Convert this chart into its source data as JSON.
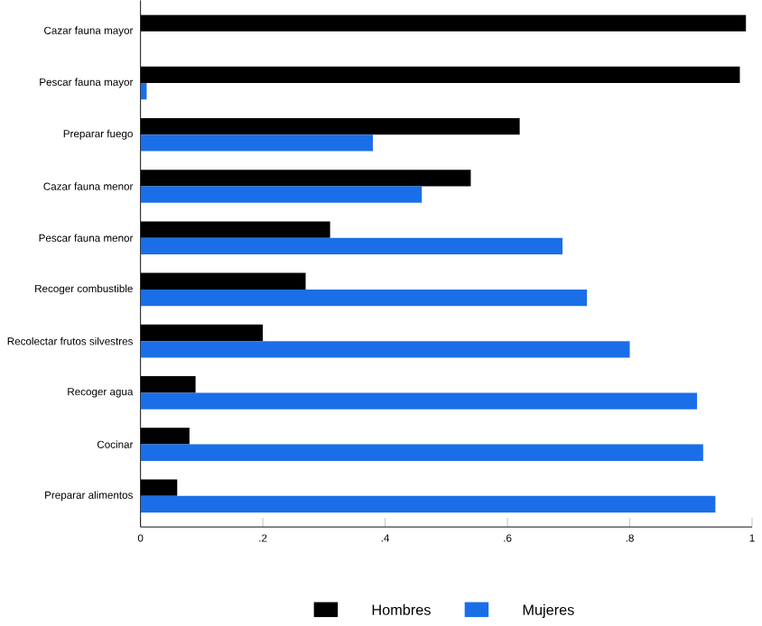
{
  "chart_data": {
    "type": "bar",
    "orientation": "horizontal",
    "categories": [
      "Cazar fauna mayor",
      "Pescar fauna mayor",
      "Preparar fuego",
      "Cazar fauna menor",
      "Pescar fauna menor",
      "Recoger combustible",
      "Recolectar frutos silvestres",
      "Recoger agua",
      "Cocinar",
      "Preparar alimentos"
    ],
    "series": [
      {
        "name": "Hombres",
        "color": "#000000",
        "values": [
          0.99,
          0.98,
          0.62,
          0.54,
          0.31,
          0.27,
          0.2,
          0.09,
          0.08,
          0.06
        ]
      },
      {
        "name": "Mujeres",
        "color": "#1a6fe8",
        "values": [
          0,
          0.01,
          0.38,
          0.46,
          0.69,
          0.73,
          0.8,
          0.91,
          0.92,
          0.94
        ]
      }
    ],
    "xlim": [
      0,
      1
    ],
    "xticks": [
      0,
      {
        "value": 0.2,
        "label": ".2"
      },
      {
        "value": 0.4,
        "label": ".4"
      },
      {
        "value": 0.6,
        "label": ".6"
      },
      {
        "value": 0.8,
        "label": ".8"
      },
      1
    ],
    "grid": false,
    "legend": "bottom"
  }
}
